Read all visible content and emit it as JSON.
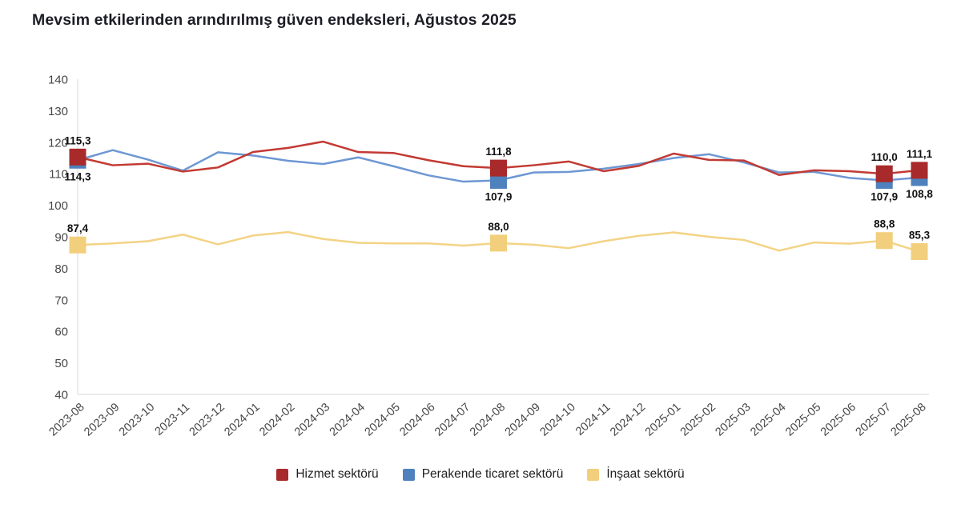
{
  "title": "Mevsim etkilerinden arındırılmış güven endeksleri, Ağustos 2025",
  "chart_data": {
    "type": "line",
    "x": [
      "2023-08",
      "2023-09",
      "2023-10",
      "2023-11",
      "2023-12",
      "2024-01",
      "2024-02",
      "2024-03",
      "2024-04",
      "2024-05",
      "2024-06",
      "2024-07",
      "2024-08",
      "2024-09",
      "2024-10",
      "2024-11",
      "2024-12",
      "2025-01",
      "2025-02",
      "2025-03",
      "2025-04",
      "2025-05",
      "2025-06",
      "2025-07",
      "2025-08"
    ],
    "ylim": [
      40,
      140
    ],
    "yticks": [
      140,
      130,
      120,
      110,
      100,
      90,
      80,
      70,
      60,
      50,
      40
    ],
    "grid": "off",
    "legend_position": "bottom-center",
    "series": [
      {
        "name": "İnşaat sektörü",
        "line_color": "#f3d385",
        "marker_color": "#f2cf7c",
        "label_side": "above",
        "values": [
          87.4,
          87.9,
          88.6,
          90.7,
          87.6,
          90.4,
          91.5,
          89.3,
          88.1,
          87.9,
          87.9,
          87.2,
          88.0,
          87.5,
          86.4,
          88.6,
          90.3,
          91.4,
          90.0,
          89.0,
          85.6,
          88.2,
          87.8,
          88.8,
          85.3
        ],
        "point_labels": {
          "0": "87,4",
          "12": "88,0",
          "23": "88,8",
          "24": "85,3"
        }
      },
      {
        "name": "Perakende ticaret sektörü",
        "line_color": "#6e97d3",
        "marker_color": "#4e81bd",
        "label_side": "below",
        "values": [
          114.3,
          117.5,
          114.5,
          111.0,
          116.8,
          115.8,
          114.1,
          113.1,
          115.2,
          112.4,
          109.5,
          107.5,
          107.9,
          110.4,
          110.6,
          111.6,
          113.1,
          115.0,
          116.2,
          113.6,
          110.4,
          110.6,
          108.7,
          107.9,
          108.8
        ],
        "point_labels": {
          "0": "114,3",
          "12": "107,9",
          "23": "107,9",
          "24": "108,8"
        }
      },
      {
        "name": "Hizmet sektörü",
        "line_color": "#c23a33",
        "marker_color": "#a82a2a",
        "label_side": "above",
        "values": [
          115.3,
          112.7,
          113.2,
          110.7,
          112.0,
          116.9,
          118.2,
          120.2,
          116.9,
          116.6,
          114.3,
          112.4,
          111.8,
          112.7,
          113.9,
          110.8,
          112.5,
          116.4,
          114.4,
          114.2,
          109.6,
          111.1,
          110.8,
          110.0,
          111.1
        ],
        "point_labels": {
          "0": "115,3",
          "12": "111,8",
          "23": "110,0",
          "24": "111,1"
        }
      }
    ],
    "legend_order": [
      "Hizmet sektörü",
      "Perakende ticaret sektörü",
      "İnşaat sektörü"
    ]
  }
}
